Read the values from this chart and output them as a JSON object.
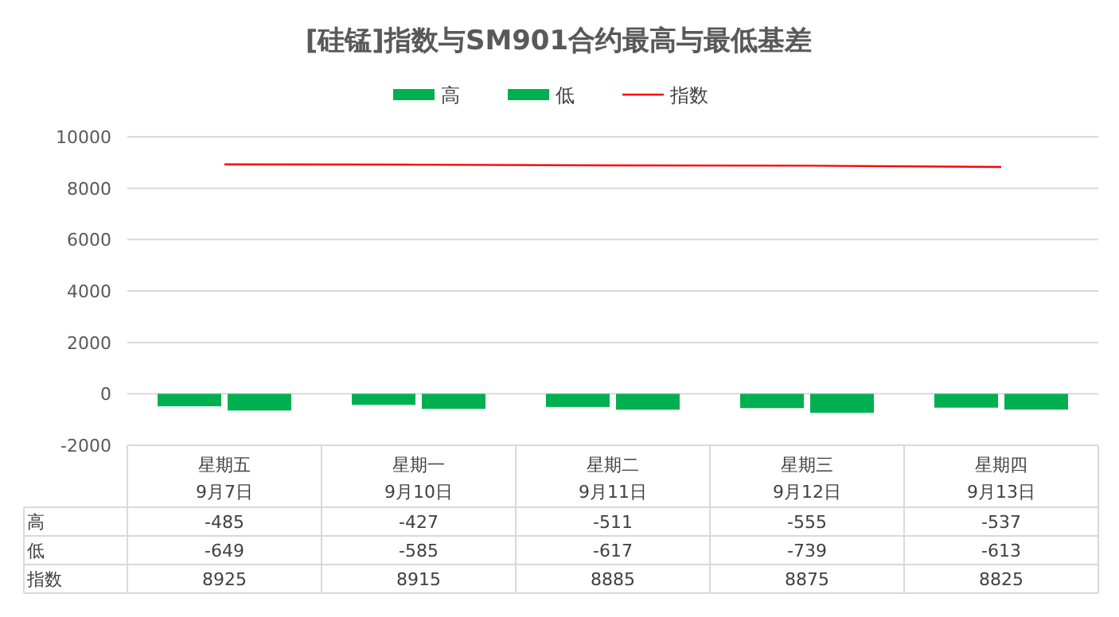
{
  "chart_data": {
    "type": "bar",
    "title": "[硅锰]指数与SM901合约最高与最低基差",
    "categories": [
      "星期五\n9月7日",
      "星期一\n9月10日",
      "星期二\n9月11日",
      "星期三\n9月12日",
      "星期四\n9月13日"
    ],
    "series": [
      {
        "name": "高",
        "color": "#00b050",
        "values": [
          -485,
          -427,
          -511,
          -555,
          -537
        ]
      },
      {
        "name": "低",
        "color": "#00b050",
        "values": [
          -649,
          -585,
          -617,
          -739,
          -613
        ]
      },
      {
        "name": "指数",
        "type": "line",
        "color": "#ff0000",
        "values": [
          8925,
          8915,
          8885,
          8875,
          8825
        ]
      }
    ],
    "ylim": [
      -2000,
      10000
    ],
    "yticks": [
      -2000,
      0,
      2000,
      4000,
      6000,
      8000,
      10000
    ],
    "grid": "y",
    "legend": "top",
    "data_labels": true
  }
}
